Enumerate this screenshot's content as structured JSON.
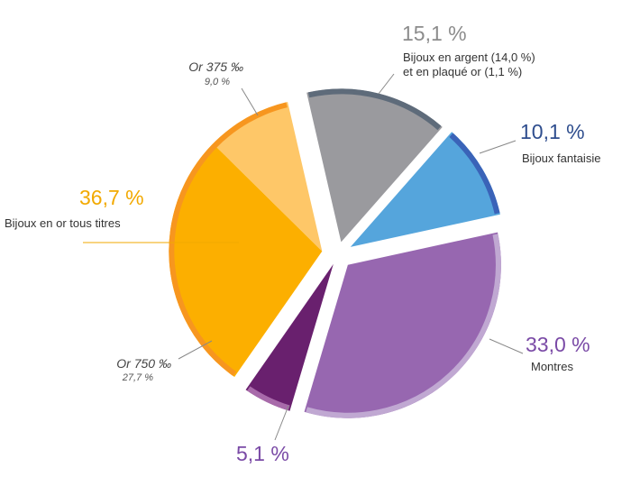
{
  "colors": {
    "silver": "#9a9a9e",
    "silver_rim": "#5e6b7a",
    "fantaisie": "#55a5dc",
    "fantaisie_rim": "#3a63b8",
    "montres": "#9767b0",
    "montres_rim": "#c0a8d2",
    "dark": "#69206e",
    "dark_rim": "#a86aaa",
    "or750": "#fcaf00",
    "or375": "#fec768",
    "or_rim": "#f7961f",
    "gold_text": "#f2a900",
    "purple_text": "#7a4aa6",
    "blue_text": "#2f4e8e",
    "grey_text": "#8c8c8c"
  },
  "chart_data": {
    "type": "pie",
    "slices": [
      {
        "label": "Bijoux en argent (14,0 %) et en plaqué or (1,1 %)",
        "value": 15.1,
        "value_text": "15,1 %",
        "color": "#9a9a9e"
      },
      {
        "label": "Bijoux fantaisie",
        "value": 10.1,
        "value_text": "10,1 %",
        "color": "#55a5dc"
      },
      {
        "label": "Montres",
        "value": 33.0,
        "value_text": "33,0 %",
        "color": "#9767b0"
      },
      {
        "label": "",
        "value": 5.1,
        "value_text": "5,1 %",
        "color": "#69206e"
      },
      {
        "label": "Bijoux en or tous titres",
        "value": 36.7,
        "value_text": "36,7 %",
        "color": "#fcaf00",
        "sub": [
          {
            "label": "Or 750 ‰",
            "value": 27.7,
            "value_text": "27,7 %",
            "color": "#fcaf00"
          },
          {
            "label": "Or 375 ‰",
            "value": 9.0,
            "value_text": "9,0 %",
            "color": "#fec768"
          }
        ]
      }
    ]
  },
  "labels": {
    "silver_value": "15,1 %",
    "silver_line1": "Bijoux en argent (14,0 %)",
    "silver_line2": "et en plaqué or (1,1 %)",
    "fantaisie_value": "10,1 %",
    "fantaisie_name": "Bijoux fantaisie",
    "montres_value": "33,0 %",
    "montres_name": "Montres",
    "dark_value": "5,1 %",
    "gold_value": "36,7 %",
    "gold_name": "Bijoux en or tous titres",
    "or375_name": "Or 375 ‰",
    "or375_value": "9,0 %",
    "or750_name": "Or 750 ‰",
    "or750_value": "27,7 %"
  }
}
